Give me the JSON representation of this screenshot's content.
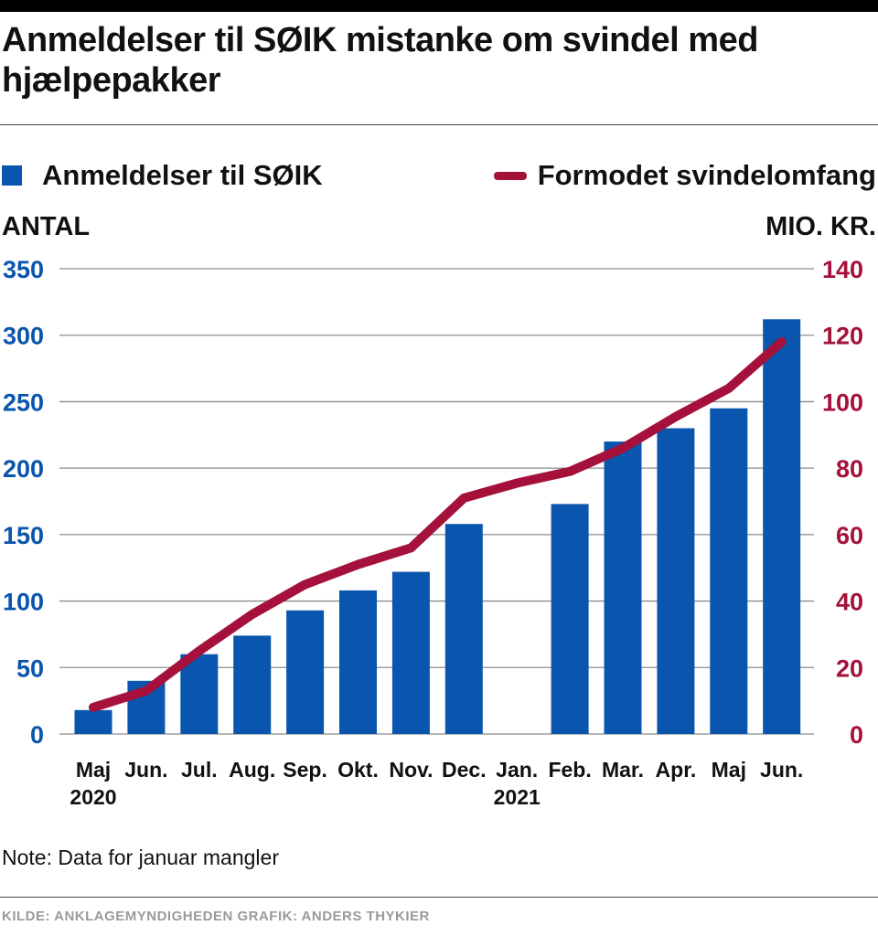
{
  "header": {
    "title": "Anmeldelser til SØIK mistanke om svindel med hjælpepakker"
  },
  "legend": {
    "bars_label": "Anmeldelser til SØIK",
    "line_label": "Formodet svindelomfang"
  },
  "axes": {
    "left_unit": "ANTAL",
    "right_unit": "MIO. KR."
  },
  "chart_data": {
    "type": "bar",
    "categories": [
      "Maj",
      "Jun.",
      "Jul.",
      "Aug.",
      "Sep.",
      "Okt.",
      "Nov.",
      "Dec.",
      "Jan.",
      "Feb.",
      "Mar.",
      "Apr.",
      "Maj",
      "Jun."
    ],
    "year_labels": [
      "2020",
      "",
      "",
      "",
      "",
      "",
      "",
      "",
      "2021",
      "",
      "",
      "",
      "",
      ""
    ],
    "series": [
      {
        "name": "Anmeldelser til SØIK",
        "type": "bar",
        "axis": "left",
        "values": [
          18,
          40,
          60,
          74,
          93,
          108,
          122,
          158,
          null,
          173,
          220,
          230,
          245,
          312
        ]
      },
      {
        "name": "Formodet svindelomfang",
        "type": "line",
        "axis": "right",
        "values": [
          8,
          13,
          25,
          36,
          45,
          51,
          56,
          71,
          75.5,
          79,
          86,
          95.5,
          104,
          118
        ]
      }
    ],
    "ylim_left": [
      0,
      350
    ],
    "yticks_left": [
      0,
      50,
      100,
      150,
      200,
      250,
      300,
      350
    ],
    "ylim_right": [
      0,
      140
    ],
    "yticks_right": [
      0,
      20,
      40,
      60,
      80,
      100,
      120,
      140
    ],
    "ylabel_left": "ANTAL",
    "ylabel_right": "MIO. KR.",
    "grid": true,
    "legend_position": "top",
    "colors": {
      "bars": "#0a55ad",
      "line": "#a5113a",
      "grid": "#8c8c8c"
    }
  },
  "note": "Note: Data for januar mangler",
  "footer": {
    "source": "KILDE:  ANKLAGEMYNDIGHEDEN    GRAFIK: ANDERS THYKIER"
  }
}
